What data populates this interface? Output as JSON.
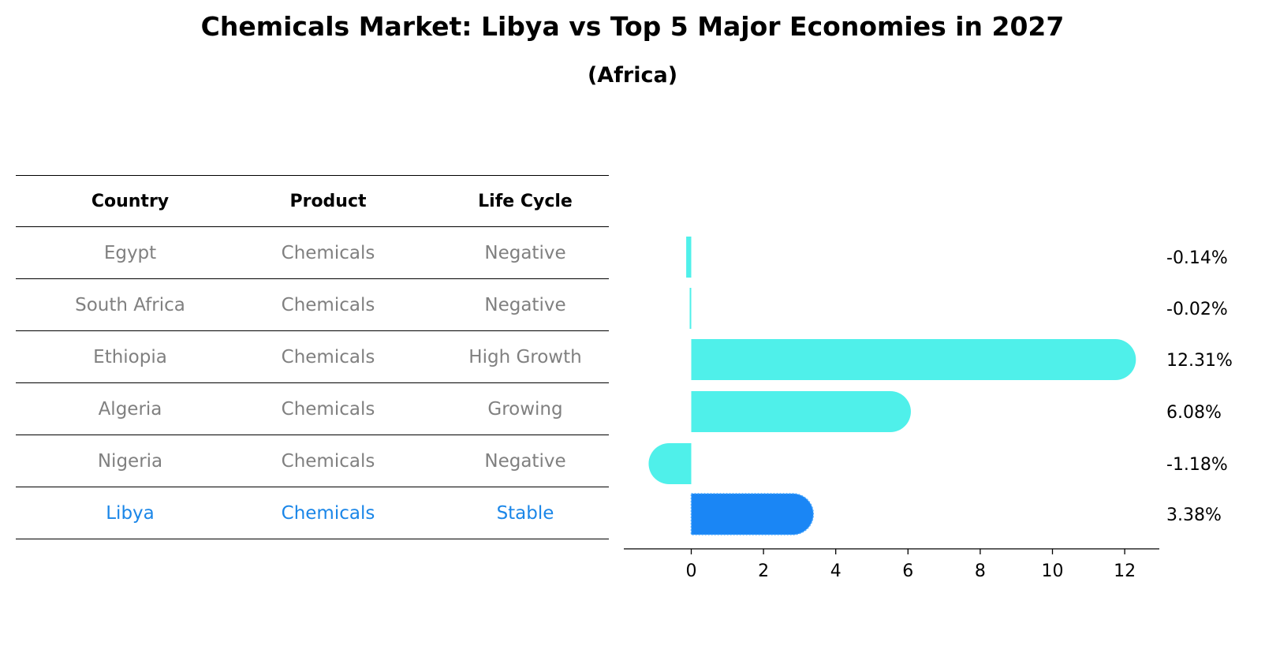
{
  "title": "Chemicals Market: Libya vs Top 5 Major Economies in 2027",
  "subtitle": "(Africa)",
  "table": {
    "headers": [
      "Country",
      "Product",
      "Life Cycle"
    ],
    "rows": [
      [
        "Egypt",
        "Chemicals",
        "Negative"
      ],
      [
        "South Africa",
        "Chemicals",
        "Negative"
      ],
      [
        "Ethiopia",
        "Chemicals",
        "High Growth"
      ],
      [
        "Algeria",
        "Chemicals",
        "Growing"
      ],
      [
        "Nigeria",
        "Chemicals",
        "Negative"
      ],
      [
        "Libya",
        "Chemicals",
        "Stable"
      ]
    ],
    "highlight_row": 5
  },
  "chart_data": {
    "type": "bar",
    "orientation": "horizontal",
    "categories": [
      "Egypt",
      "South Africa",
      "Ethiopia",
      "Algeria",
      "Nigeria",
      "Libya"
    ],
    "values": [
      -0.14,
      -0.02,
      12.31,
      6.08,
      -1.18,
      3.38
    ],
    "labels": [
      "-0.14%",
      "-0.02%",
      "12.31%",
      "6.08%",
      "-1.18%",
      "3.38%"
    ],
    "xlim": [
      -1.9,
      13
    ],
    "xticks": [
      0,
      2,
      4,
      6,
      8,
      10,
      12
    ],
    "highlight_index": 5,
    "colors": {
      "default": "#4ff0ea",
      "highlight": "#1a86f5",
      "highlight_text": "#1a86e8",
      "muted_text": "#808080"
    }
  }
}
